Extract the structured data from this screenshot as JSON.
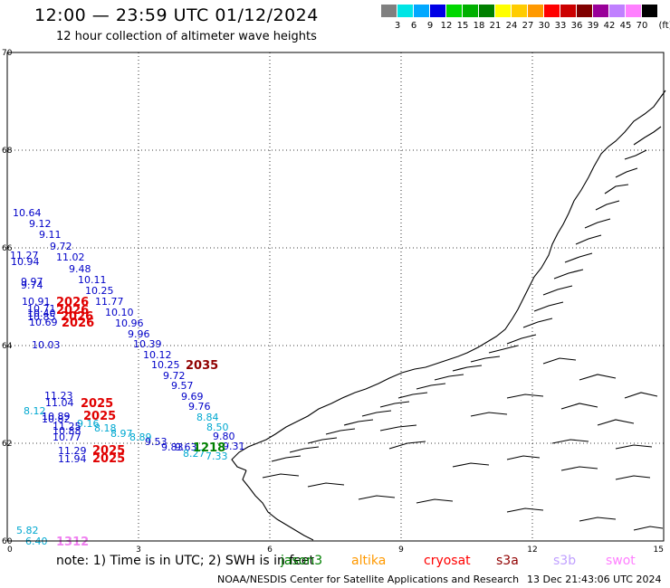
{
  "header": {
    "title": "12:00 — 23:59 UTC 01/12/2024",
    "subtitle": "12 hour collection of altimeter wave heights"
  },
  "colorbar": {
    "unit": "(ft)",
    "swatches": [
      "#808080",
      "#00e5e5",
      "#00a8ff",
      "#0000e6",
      "#00d800",
      "#00b000",
      "#008000",
      "#ffff00",
      "#ffcc00",
      "#ff9900",
      "#ff0000",
      "#cc0000",
      "#800000",
      "#990099",
      "#c080ff",
      "#ff80ff",
      "#000000"
    ],
    "labels": [
      "3",
      "6",
      "9",
      "12",
      "15",
      "18",
      "21",
      "24",
      "27",
      "30",
      "33",
      "36",
      "39",
      "42",
      "45",
      "70"
    ]
  },
  "axes": {
    "x_ticks": [
      "0",
      "3",
      "6",
      "9",
      "12",
      "15"
    ],
    "y_ticks": [
      "60",
      "62",
      "64",
      "66",
      "68",
      "70"
    ]
  },
  "wave_labels": [
    {
      "text": "10.64",
      "color": "#0000c8"
    },
    {
      "text": "9.12",
      "color": "#0000c8"
    },
    {
      "text": "9.11",
      "color": "#0000c8"
    },
    {
      "text": "9.72",
      "color": "#0000c8"
    },
    {
      "text": "11.27",
      "color": "#0000c8"
    },
    {
      "text": "11.02",
      "color": "#0000c8"
    },
    {
      "text": "10.94",
      "color": "#0000c8"
    },
    {
      "text": "9.48",
      "color": "#0000c8"
    },
    {
      "text": "10.11",
      "color": "#0000c8"
    },
    {
      "text": "9.97",
      "color": "#0000c8"
    },
    {
      "text": "9.74",
      "color": "#0000c8"
    },
    {
      "text": "10.25",
      "color": "#0000c8"
    },
    {
      "text": "10.91",
      "color": "#0000c8"
    },
    {
      "text": "11.77",
      "color": "#0000c8"
    },
    {
      "text": "10.71",
      "color": "#0000c8"
    },
    {
      "text": "10.40",
      "color": "#0000c8"
    },
    {
      "text": "10.10",
      "color": "#0000c8"
    },
    {
      "text": "10.85",
      "color": "#0000c8"
    },
    {
      "text": "10.69",
      "color": "#0000c8"
    },
    {
      "text": "10.96",
      "color": "#0000c8"
    },
    {
      "text": "9.96",
      "color": "#0000c8"
    },
    {
      "text": "10.03",
      "color": "#0000c8"
    },
    {
      "text": "10.39",
      "color": "#0000c8"
    },
    {
      "text": "10.12",
      "color": "#0000c8"
    },
    {
      "text": "10.25",
      "color": "#0000c8"
    },
    {
      "text": "9.72",
      "color": "#0000c8"
    },
    {
      "text": "9.57",
      "color": "#0000c8"
    },
    {
      "text": "11.23",
      "color": "#0000c8"
    },
    {
      "text": "9.69",
      "color": "#0000c8"
    },
    {
      "text": "11.04",
      "color": "#0000c8"
    },
    {
      "text": "9.76",
      "color": "#0000c8"
    },
    {
      "text": "8.12",
      "color": "#00a8d0"
    },
    {
      "text": "8.84",
      "color": "#00a8d0"
    },
    {
      "text": "10.89",
      "color": "#0000c8"
    },
    {
      "text": "10.82",
      "color": "#0000c8"
    },
    {
      "text": "9.16",
      "color": "#00a8d0"
    },
    {
      "text": "8.50",
      "color": "#00a8d0"
    },
    {
      "text": "11.25",
      "color": "#0000c8"
    },
    {
      "text": "8.18",
      "color": "#00a8d0"
    },
    {
      "text": "10.88",
      "color": "#0000c8"
    },
    {
      "text": "8.97",
      "color": "#00a8d0"
    },
    {
      "text": "9.80",
      "color": "#0000c8"
    },
    {
      "text": "10.77",
      "color": "#0000c8"
    },
    {
      "text": "8.89",
      "color": "#00a8d0"
    },
    {
      "text": "9.53",
      "color": "#0000c8"
    },
    {
      "text": "9.31",
      "color": "#0000c8"
    },
    {
      "text": "9.83",
      "color": "#0000c8"
    },
    {
      "text": "9.63",
      "color": "#0000c8"
    },
    {
      "text": "11.29",
      "color": "#0000c8"
    },
    {
      "text": "8.27",
      "color": "#00a8d0"
    },
    {
      "text": "7.33",
      "color": "#00a8d0"
    },
    {
      "text": "11.94",
      "color": "#0000c8"
    },
    {
      "text": "5.82",
      "color": "#00a8d0"
    },
    {
      "text": "6.40",
      "color": "#00a8d0"
    }
  ],
  "pass_labels": [
    {
      "text": "2026",
      "color": "#e00000"
    },
    {
      "text": "2026",
      "color": "#e00000"
    },
    {
      "text": "2026",
      "color": "#e00000"
    },
    {
      "text": "2026",
      "color": "#e00000"
    },
    {
      "text": "2035",
      "color": "#900000"
    },
    {
      "text": "2025",
      "color": "#e00000"
    },
    {
      "text": "2025",
      "color": "#e00000"
    },
    {
      "text": "1218",
      "color": "#008000"
    },
    {
      "text": "2025",
      "color": "#e00000"
    },
    {
      "text": "2025",
      "color": "#e00000"
    },
    {
      "text": "1312",
      "color": "#f080f0"
    }
  ],
  "footer": {
    "note": "note:  1) Time is in UTC;  2) SWH is in feet",
    "satellites": [
      {
        "name": "jason3",
        "color": "#008000"
      },
      {
        "name": "altika",
        "color": "#ff9900"
      },
      {
        "name": "cryosat",
        "color": "#ff0000"
      },
      {
        "name": "s3a",
        "color": "#900000"
      },
      {
        "name": "s3b",
        "color": "#c0a0ff"
      },
      {
        "name": "swot",
        "color": "#ff80ff"
      }
    ],
    "credit": "NOAA/NESDIS Center for Satellite Applications and Research",
    "timestamp": "13 Dec 21:43:06 UTC 2024"
  }
}
